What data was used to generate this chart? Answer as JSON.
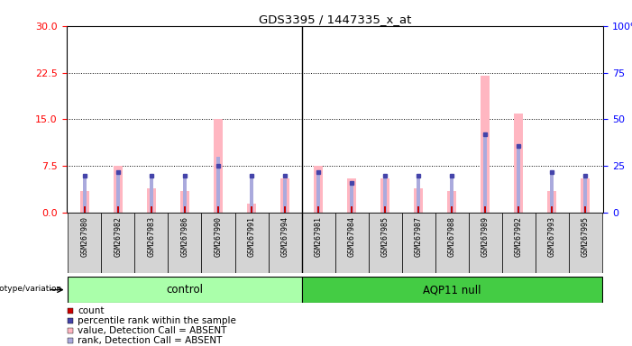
{
  "title": "GDS3395 / 1447335_x_at",
  "samples": [
    "GSM267980",
    "GSM267982",
    "GSM267983",
    "GSM267986",
    "GSM267990",
    "GSM267991",
    "GSM267994",
    "GSM267981",
    "GSM267984",
    "GSM267985",
    "GSM267987",
    "GSM267988",
    "GSM267989",
    "GSM267992",
    "GSM267993",
    "GSM267995"
  ],
  "groups": [
    "control",
    "control",
    "control",
    "control",
    "control",
    "control",
    "control",
    "AQP11 null",
    "AQP11 null",
    "AQP11 null",
    "AQP11 null",
    "AQP11 null",
    "AQP11 null",
    "AQP11 null",
    "AQP11 null",
    "AQP11 null"
  ],
  "n_control": 7,
  "absent_value": [
    3.5,
    7.5,
    4.0,
    3.5,
    15.0,
    1.5,
    5.5,
    7.5,
    5.5,
    5.5,
    4.0,
    3.5,
    22.0,
    16.0,
    3.5,
    5.5
  ],
  "absent_rank_pct": [
    20,
    22,
    20,
    20,
    30,
    20,
    18,
    22,
    16,
    20,
    20,
    20,
    42,
    36,
    22,
    20
  ],
  "count_value": [
    1,
    1,
    1,
    1,
    1,
    1,
    1,
    1,
    1,
    1,
    1,
    1,
    1,
    1,
    1,
    1
  ],
  "rank_pct": [
    20,
    22,
    20,
    20,
    25,
    20,
    20,
    22,
    16,
    20,
    20,
    20,
    42,
    36,
    22,
    20
  ],
  "ylim_left": [
    0,
    30
  ],
  "ylim_right": [
    0,
    100
  ],
  "yticks_left": [
    0,
    7.5,
    15,
    22.5,
    30
  ],
  "yticks_right": [
    0,
    25,
    50,
    75,
    100
  ],
  "absent_bar_color": "#FFB6C1",
  "absent_rank_color": "#AAAADD",
  "count_color": "#CC0000",
  "rank_color": "#4444AA",
  "control_color": "#AAFFAA",
  "aqp_color": "#44CC44",
  "legend_items": [
    {
      "label": "count",
      "color": "#CC0000"
    },
    {
      "label": "percentile rank within the sample",
      "color": "#4444AA"
    },
    {
      "label": "value, Detection Call = ABSENT",
      "color": "#FFB6C1"
    },
    {
      "label": "rank, Detection Call = ABSENT",
      "color": "#AAAADD"
    }
  ],
  "genotype_label": "genotype/variation"
}
